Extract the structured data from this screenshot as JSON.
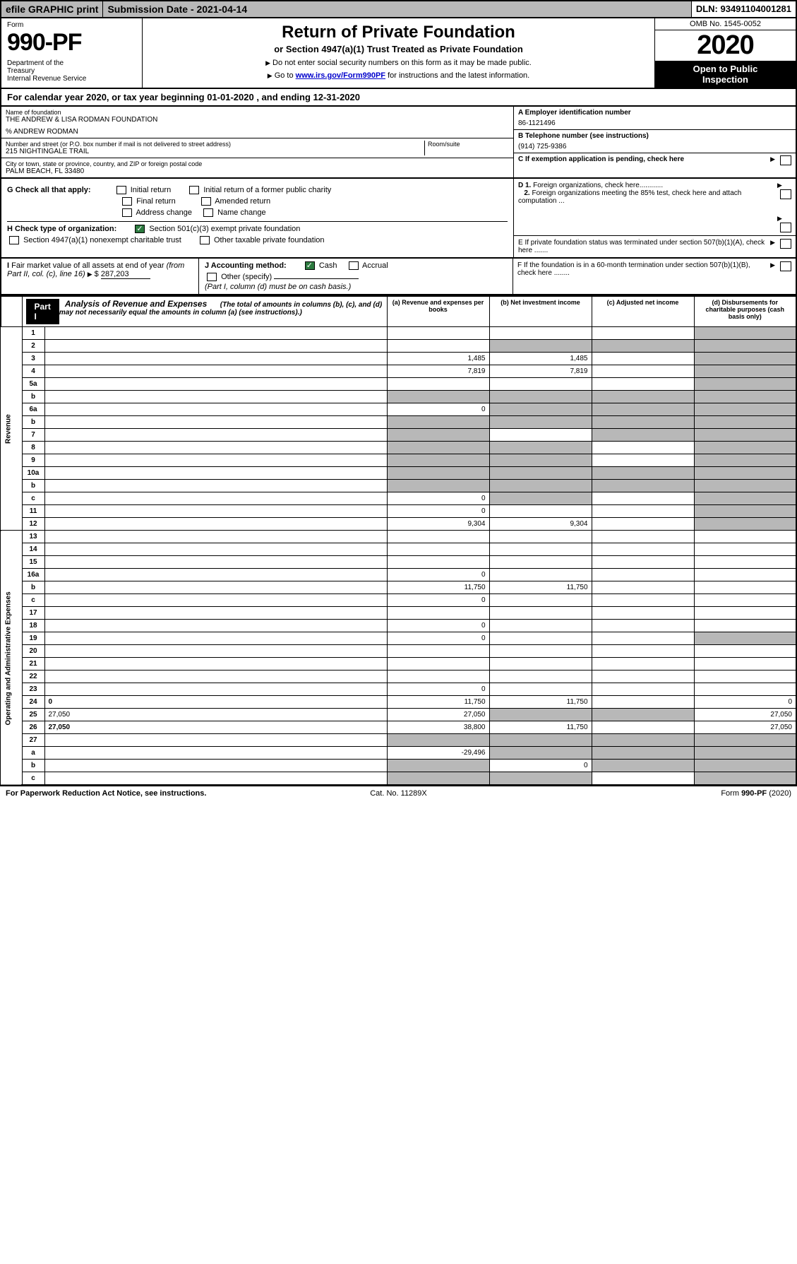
{
  "top": {
    "efile": "efile GRAPHIC print",
    "subdate": "Submission Date - 2021-04-14",
    "dln": "DLN: 93491104001281"
  },
  "hdr": {
    "form_label": "Form",
    "form_num": "990-PF",
    "dept": "Department of the Treasury\nInternal Revenue Service",
    "title": "Return of Private Foundation",
    "sub": "or Section 4947(a)(1) Trust Treated as Private Foundation",
    "note1": "Do not enter social security numbers on this form as it may be made public.",
    "note2_pre": "Go to ",
    "note2_link": "www.irs.gov/Form990PF",
    "note2_post": " for instructions and the latest information.",
    "omb": "OMB No. 1545-0052",
    "year": "2020",
    "open": "Open to Public Inspection"
  },
  "cal": "For calendar year 2020, or tax year beginning 01-01-2020          , and ending 12-31-2020",
  "info": {
    "name_label": "Name of foundation",
    "name": "THE ANDREW & LISA RODMAN FOUNDATION",
    "co": "% ANDREW RODMAN",
    "addr_label": "Number and street (or P.O. box number if mail is not delivered to street address)",
    "addr": "215 NIGHTINGALE TRAIL",
    "room_label": "Room/suite",
    "city_label": "City or town, state or province, country, and ZIP or foreign postal code",
    "city": "PALM BEACH, FL  33480",
    "a_label": "A Employer identification number",
    "a_val": "86-1121496",
    "b_label": "B Telephone number (see instructions)",
    "b_val": "(914) 725-9386",
    "c_label": "C If exemption application is pending, check here"
  },
  "checks": {
    "g_label": "G Check all that apply:",
    "g_opts": [
      "Initial return",
      "Initial return of a former public charity",
      "Final return",
      "Amended return",
      "Address change",
      "Name change"
    ],
    "h_label": "H Check type of organization:",
    "h_1": "Section 501(c)(3) exempt private foundation",
    "h_2": "Section 4947(a)(1) nonexempt charitable trust",
    "h_3": "Other taxable private foundation",
    "i_label": "I Fair market value of all assets at end of year (from Part II, col. (c), line 16)",
    "i_val": "287,203",
    "j_label": "J Accounting method:",
    "j_cash": "Cash",
    "j_accrual": "Accrual",
    "j_other": "Other (specify)",
    "j_note": "(Part I, column (d) must be on cash basis.)",
    "d1": "D 1. Foreign organizations, check here............",
    "d2": "2. Foreign organizations meeting the 85% test, check here and attach computation ...",
    "e": "E  If private foundation status was terminated under section 507(b)(1)(A), check here .......",
    "f": "F  If the foundation is in a 60-month termination under section 507(b)(1)(B), check here ........"
  },
  "part1": {
    "badge": "Part I",
    "title": "Analysis of Revenue and Expenses",
    "note": "(The total of amounts in columns (b), (c), and (d) may not necessarily equal the amounts in column (a) (see instructions).)",
    "col_a": "(a) Revenue and expenses per books",
    "col_b": "(b) Net investment income",
    "col_c": "(c) Adjusted net income",
    "col_d": "(d) Disbursements for charitable purposes (cash basis only)",
    "side_rev": "Revenue",
    "side_exp": "Operating and Administrative Expenses"
  },
  "rows": [
    {
      "n": "1",
      "d": "",
      "a": "",
      "b": "",
      "c": "",
      "gd": true
    },
    {
      "n": "2",
      "d": "",
      "a": "",
      "b": "",
      "c": "",
      "gb": true,
      "gc": true,
      "gd": true,
      "bold_not": true
    },
    {
      "n": "3",
      "d": "",
      "a": "1,485",
      "b": "1,485",
      "c": "",
      "gd": true
    },
    {
      "n": "4",
      "d": "",
      "a": "7,819",
      "b": "7,819",
      "c": "",
      "gd": true
    },
    {
      "n": "5a",
      "d": "",
      "a": "",
      "b": "",
      "c": "",
      "gd": true
    },
    {
      "n": "b",
      "d": "",
      "a": "",
      "b": "",
      "c": "",
      "ga": true,
      "gb": true,
      "gc": true,
      "gd": true,
      "ul": true
    },
    {
      "n": "6a",
      "d": "",
      "a": "0",
      "b": "",
      "c": "",
      "gb": true,
      "gc": true,
      "gd": true
    },
    {
      "n": "b",
      "d": "",
      "a": "",
      "b": "",
      "c": "",
      "ga": true,
      "gb": true,
      "gc": true,
      "gd": true,
      "ul": true
    },
    {
      "n": "7",
      "d": "",
      "a": "",
      "b": "",
      "c": "",
      "ga": true,
      "gc": true,
      "gd": true
    },
    {
      "n": "8",
      "d": "",
      "a": "",
      "b": "",
      "c": "",
      "ga": true,
      "gb": true,
      "gd": true
    },
    {
      "n": "9",
      "d": "",
      "a": "",
      "b": "",
      "c": "",
      "ga": true,
      "gb": true,
      "gd": true
    },
    {
      "n": "10a",
      "d": "",
      "a": "",
      "b": "",
      "c": "",
      "ga": true,
      "gb": true,
      "gc": true,
      "gd": true,
      "ul": true
    },
    {
      "n": "b",
      "d": "",
      "a": "",
      "b": "",
      "c": "",
      "ga": true,
      "gb": true,
      "gc": true,
      "gd": true,
      "ul": true
    },
    {
      "n": "c",
      "d": "",
      "a": "0",
      "b": "",
      "c": "",
      "gb": true,
      "gd": true
    },
    {
      "n": "11",
      "d": "",
      "a": "0",
      "b": "",
      "c": "",
      "gd": true
    },
    {
      "n": "12",
      "d": "",
      "a": "9,304",
      "b": "9,304",
      "c": "",
      "gd": true,
      "bold": true
    },
    {
      "n": "13",
      "d": "",
      "a": "",
      "b": "",
      "c": ""
    },
    {
      "n": "14",
      "d": "",
      "a": "",
      "b": "",
      "c": ""
    },
    {
      "n": "15",
      "d": "",
      "a": "",
      "b": "",
      "c": ""
    },
    {
      "n": "16a",
      "d": "",
      "a": "0",
      "b": "",
      "c": ""
    },
    {
      "n": "b",
      "d": "",
      "a": "11,750",
      "b": "11,750",
      "c": ""
    },
    {
      "n": "c",
      "d": "",
      "a": "0",
      "b": "",
      "c": ""
    },
    {
      "n": "17",
      "d": "",
      "a": "",
      "b": "",
      "c": ""
    },
    {
      "n": "18",
      "d": "",
      "a": "0",
      "b": "",
      "c": ""
    },
    {
      "n": "19",
      "d": "",
      "a": "0",
      "b": "",
      "c": "",
      "gd": true
    },
    {
      "n": "20",
      "d": "",
      "a": "",
      "b": "",
      "c": ""
    },
    {
      "n": "21",
      "d": "",
      "a": "",
      "b": "",
      "c": ""
    },
    {
      "n": "22",
      "d": "",
      "a": "",
      "b": "",
      "c": ""
    },
    {
      "n": "23",
      "d": "",
      "a": "0",
      "b": "",
      "c": ""
    },
    {
      "n": "24",
      "d": "0",
      "a": "11,750",
      "b": "11,750",
      "c": "",
      "bold": true
    },
    {
      "n": "25",
      "d": "27,050",
      "a": "27,050",
      "b": "",
      "c": "",
      "gb": true,
      "gc": true
    },
    {
      "n": "26",
      "d": "27,050",
      "a": "38,800",
      "b": "11,750",
      "c": "",
      "bold": true
    },
    {
      "n": "27",
      "d": "",
      "a": "",
      "b": "",
      "c": "",
      "ga": true,
      "gb": true,
      "gc": true,
      "gd": true
    },
    {
      "n": "a",
      "d": "",
      "a": "-29,496",
      "b": "",
      "c": "",
      "gb": true,
      "gc": true,
      "gd": true,
      "bold": true
    },
    {
      "n": "b",
      "d": "",
      "a": "",
      "b": "0",
      "c": "",
      "ga": true,
      "gc": true,
      "gd": true,
      "bold": true
    },
    {
      "n": "c",
      "d": "",
      "a": "",
      "b": "",
      "c": "",
      "ga": true,
      "gb": true,
      "gd": true,
      "bold": true
    }
  ],
  "footer": {
    "left": "For Paperwork Reduction Act Notice, see instructions.",
    "mid": "Cat. No. 11289X",
    "right": "Form 990-PF (2020)"
  },
  "colors": {
    "grey": "#b8b8b8",
    "green": "#2c7a3f",
    "link": "#0000cc"
  }
}
